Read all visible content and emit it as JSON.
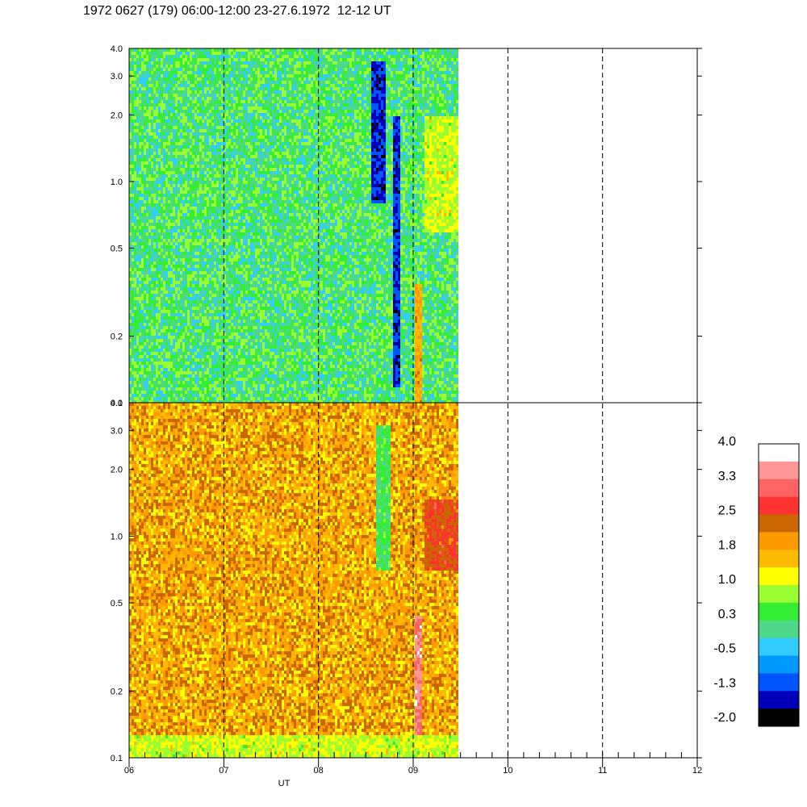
{
  "title": "1972 0627 (179) 06:00-12:00 23-27.6.1972  12-12 UT",
  "chart_data": [
    {
      "type": "heatmap",
      "panel": "upper",
      "x_range": [
        6,
        12
      ],
      "y_range": [
        0.1,
        4.0
      ],
      "y_scale": "log",
      "y_ticks": [
        "0.1",
        "0.2",
        "0.5",
        "1.0",
        "2.0",
        "3.0",
        "4.0"
      ],
      "y_tick_values": [
        0.1,
        0.2,
        0.5,
        1.0,
        2.0,
        3.0,
        4.0
      ],
      "data_end_x": 9.47,
      "dominant_level": 0.3,
      "features": [
        {
          "x_start": 8.55,
          "x_end": 8.7,
          "y_min": 0.8,
          "y_max": 3.5,
          "level": -1.3
        },
        {
          "x_start": 8.78,
          "x_end": 8.84,
          "y_min": 0.12,
          "y_max": 2.0,
          "level": -1.3
        },
        {
          "x_start": 9.0,
          "x_end": 9.09,
          "y_min": 0.1,
          "y_max": 0.35,
          "level": 1.8
        },
        {
          "x_start": 9.1,
          "x_end": 9.47,
          "y_min": 0.6,
          "y_max": 2.0,
          "level": 1.0
        }
      ]
    },
    {
      "type": "heatmap",
      "panel": "lower",
      "x_range": [
        6,
        12
      ],
      "y_range": [
        0.1,
        4.0
      ],
      "y_scale": "log",
      "y_ticks": [
        "0.1",
        "0.2",
        "0.5",
        "1.0",
        "2.0",
        "3.0",
        "4.0"
      ],
      "y_tick_values": [
        0.1,
        0.2,
        0.5,
        1.0,
        2.0,
        3.0,
        4.0
      ],
      "data_end_x": 9.47,
      "dominant_level": 1.8,
      "features": [
        {
          "x_start": 8.6,
          "x_end": 8.75,
          "y_min": 0.7,
          "y_max": 3.2,
          "level": 0.3
        },
        {
          "x_start": 9.0,
          "x_end": 9.09,
          "y_min": 0.1,
          "y_max": 0.45,
          "level": 3.3
        },
        {
          "x_start": 9.1,
          "x_end": 9.47,
          "y_min": 0.7,
          "y_max": 1.5,
          "level": 2.5
        },
        {
          "x_start": 6.0,
          "x_end": 9.47,
          "y_min": 0.1,
          "y_max": 0.13,
          "level": 1.0
        }
      ]
    }
  ],
  "x_axis": {
    "label": "UT",
    "tick_labels": [
      "06",
      "07",
      "08",
      "09",
      "10",
      "11",
      "12"
    ],
    "tick_values": [
      6,
      7,
      8,
      9,
      10,
      11,
      12
    ],
    "dashed_gridlines": [
      7,
      8,
      9,
      10,
      11
    ]
  },
  "colorbar": {
    "labels": [
      "4.0",
      "3.3",
      "2.5",
      "1.8",
      "1.0",
      "0.3",
      "-0.5",
      "-1.3",
      "-2.0"
    ],
    "label_values": [
      4.0,
      3.3,
      2.5,
      1.8,
      1.0,
      0.3,
      -0.5,
      -1.3,
      -2.0
    ],
    "colors_top_to_bottom": [
      "#ffffff",
      "#ff9797",
      "#ff6464",
      "#ff3232",
      "#cc6600",
      "#ff9900",
      "#ffb900",
      "#ffff00",
      "#99ff33",
      "#33ee33",
      "#4dd88a",
      "#33ccff",
      "#0099ff",
      "#0055ff",
      "#0000bb",
      "#000000"
    ]
  }
}
